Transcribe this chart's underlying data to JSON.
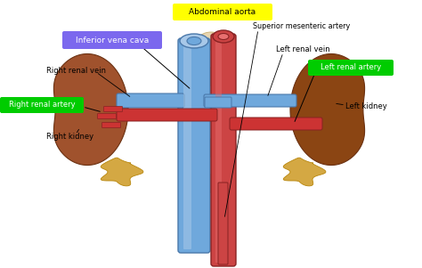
{
  "bg_color": "#ffffff",
  "labels": {
    "inferior_vena_cava": "Inferior vena cava",
    "superior_mesenteric": "Superior mesenteric artery",
    "right_kidney": "Right kidney",
    "left_kidney": "Left kidney",
    "right_renal_artery": "Right renal artery",
    "left_renal_artery": "Left renal artery",
    "right_renal_vein": "Right renal vein",
    "left_renal_vein": "Left renal vein",
    "abdominal_aorta": "Abdominal aorta"
  },
  "label_boxes": {
    "inferior_vena_cava": {
      "color": "#7b68ee",
      "text_color": "white"
    },
    "right_renal_artery": {
      "color": "#00cc00",
      "text_color": "white"
    },
    "left_renal_artery": {
      "color": "#00cc00",
      "text_color": "white"
    },
    "abdominal_aorta": {
      "color": "#ffff00",
      "text_color": "black"
    }
  },
  "colors": {
    "vena_cava": "#6fa8dc",
    "vena_cava_dark": "#4a78aa",
    "vena_cava_light": "#a8c8e8",
    "aorta": "#cc4444",
    "aorta_dark": "#882222",
    "aorta_light": "#e87070",
    "kidney_right": "#a0522d",
    "kidney_left": "#8B4513",
    "kidney_edge": "#6b3010",
    "adrenal": "#d4a843",
    "adrenal_edge": "#b8860b",
    "spine": "#e8d5b0",
    "spine_edge": "#c8b070",
    "renal_artery": "#cc3333",
    "renal_artery_dark": "#882222",
    "renal_vein": "#6fa8dc",
    "renal_vein_dark": "#4a78aa",
    "background": "#ffffff"
  }
}
